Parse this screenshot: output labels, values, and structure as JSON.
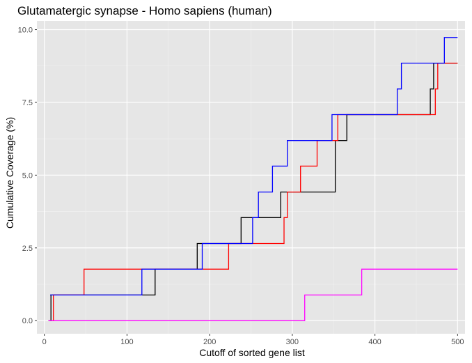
{
  "chart_data": {
    "type": "line",
    "title": "Glutamatergic synapse - Homo sapiens (human)",
    "xlabel": "Cutoff of sorted gene list",
    "ylabel": "Cumulative Coverage (%)",
    "xlim": [
      -9,
      509
    ],
    "ylim": [
      -0.45,
      10.3
    ],
    "x_ticks": [
      0,
      100,
      200,
      300,
      400,
      500
    ],
    "x_tick_labels": [
      "0",
      "100",
      "200",
      "300",
      "400",
      "500"
    ],
    "y_ticks": [
      0,
      2.5,
      5,
      7.5,
      10
    ],
    "y_tick_labels": [
      "0.0",
      "2.5",
      "5.0",
      "7.5",
      "10.0"
    ],
    "grid": true,
    "legend": "none",
    "series": [
      {
        "color": "#000000",
        "points": [
          [
            5,
            0
          ],
          [
            8,
            0
          ],
          [
            8,
            0.88
          ],
          [
            134,
            0.88
          ],
          [
            134,
            1.77
          ],
          [
            185,
            1.77
          ],
          [
            185,
            2.65
          ],
          [
            238,
            2.65
          ],
          [
            238,
            3.54
          ],
          [
            286,
            3.54
          ],
          [
            286,
            4.42
          ],
          [
            352,
            4.42
          ],
          [
            352,
            6.19
          ],
          [
            366,
            6.19
          ],
          [
            366,
            7.08
          ],
          [
            467,
            7.08
          ],
          [
            467,
            7.96
          ],
          [
            471,
            7.96
          ],
          [
            471,
            8.85
          ],
          [
            500,
            8.85
          ]
        ]
      },
      {
        "color": "#ff0000",
        "points": [
          [
            9,
            0
          ],
          [
            11,
            0
          ],
          [
            11,
            0.88
          ],
          [
            48,
            0.88
          ],
          [
            48,
            1.77
          ],
          [
            223,
            1.77
          ],
          [
            223,
            2.65
          ],
          [
            290,
            2.65
          ],
          [
            290,
            3.54
          ],
          [
            294,
            3.54
          ],
          [
            294,
            4.42
          ],
          [
            310,
            4.42
          ],
          [
            310,
            5.31
          ],
          [
            330,
            5.31
          ],
          [
            330,
            6.19
          ],
          [
            355,
            6.19
          ],
          [
            355,
            7.08
          ],
          [
            473,
            7.08
          ],
          [
            473,
            7.96
          ],
          [
            476,
            7.96
          ],
          [
            476,
            8.85
          ],
          [
            500,
            8.85
          ]
        ]
      },
      {
        "color": "#0000ff",
        "points": [
          [
            7,
            0.88
          ],
          [
            118,
            0.88
          ],
          [
            118,
            1.77
          ],
          [
            191,
            1.77
          ],
          [
            191,
            2.65
          ],
          [
            252,
            2.65
          ],
          [
            252,
            3.54
          ],
          [
            259,
            3.54
          ],
          [
            259,
            4.42
          ],
          [
            276,
            4.42
          ],
          [
            276,
            5.31
          ],
          [
            294,
            5.31
          ],
          [
            294,
            6.19
          ],
          [
            348,
            6.19
          ],
          [
            348,
            7.08
          ],
          [
            427,
            7.08
          ],
          [
            427,
            7.96
          ],
          [
            432,
            7.96
          ],
          [
            432,
            8.85
          ],
          [
            484,
            8.85
          ],
          [
            484,
            9.73
          ],
          [
            500,
            9.73
          ]
        ]
      },
      {
        "color": "#ff00ff",
        "points": [
          [
            5,
            0
          ],
          [
            315,
            0
          ],
          [
            315,
            0.88
          ],
          [
            384,
            0.88
          ],
          [
            384,
            1.77
          ],
          [
            500,
            1.77
          ]
        ]
      }
    ]
  }
}
